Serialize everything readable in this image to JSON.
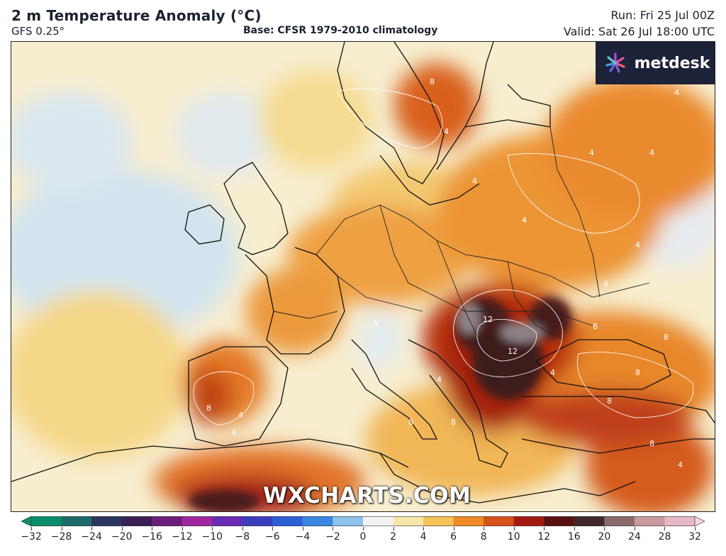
{
  "header": {
    "title": "2 m Temperature Anomaly (°C)",
    "model": "GFS 0.25°",
    "base": "Base: CFSR 1979-2010 climatology",
    "run": "Run: Fri 25 Jul 00Z",
    "valid": "Valid: Sat 26 Jul 18:00 UTC"
  },
  "logo": {
    "text": "metdesk",
    "icon": "metdesk-pinwheel-icon"
  },
  "watermark": "WXCHARTS.COM",
  "contour_labels": [
    "8",
    "4",
    "4",
    "4",
    "4",
    "4",
    "4",
    "8",
    "4",
    "12",
    "12",
    "8",
    "8",
    "8",
    "4",
    "8",
    "4",
    "8",
    "8",
    "4",
    "8",
    "4",
    "8",
    "4",
    "4"
  ],
  "colorbar": {
    "ticks": [
      "−32",
      "−28",
      "−24",
      "−20",
      "−16",
      "−12",
      "−10",
      "−8",
      "−6",
      "−4",
      "−2",
      "0",
      "2",
      "4",
      "6",
      "8",
      "10",
      "12",
      "16",
      "20",
      "24",
      "28",
      "32"
    ],
    "colors": [
      "#0b8f6a",
      "#1e6b6b",
      "#2a3560",
      "#3b1f55",
      "#6b1f7a",
      "#a0279e",
      "#6a2bb3",
      "#3b3fbf",
      "#2f5fd6",
      "#3a87e0",
      "#8fc2ec",
      "#f3f3f3",
      "#f6e6a8",
      "#f6c25a",
      "#ef8a24",
      "#d6501a",
      "#a31a12",
      "#5a1010",
      "#40282d",
      "#8a6a6a",
      "#c99aa0",
      "#e6b8c4",
      "#f2d6e0"
    ]
  },
  "legend_map": {
    "colors": {
      "cold": "#d6e6f0",
      "neutral": "#f7f0d8",
      "warm2": "#f6dc8e",
      "warm4": "#f1ad4a",
      "warm6": "#e0701e",
      "warm8": "#b8300f",
      "warm10": "#7a1810",
      "warm12": "#3c1a1a",
      "peak": "#8e8286"
    }
  }
}
